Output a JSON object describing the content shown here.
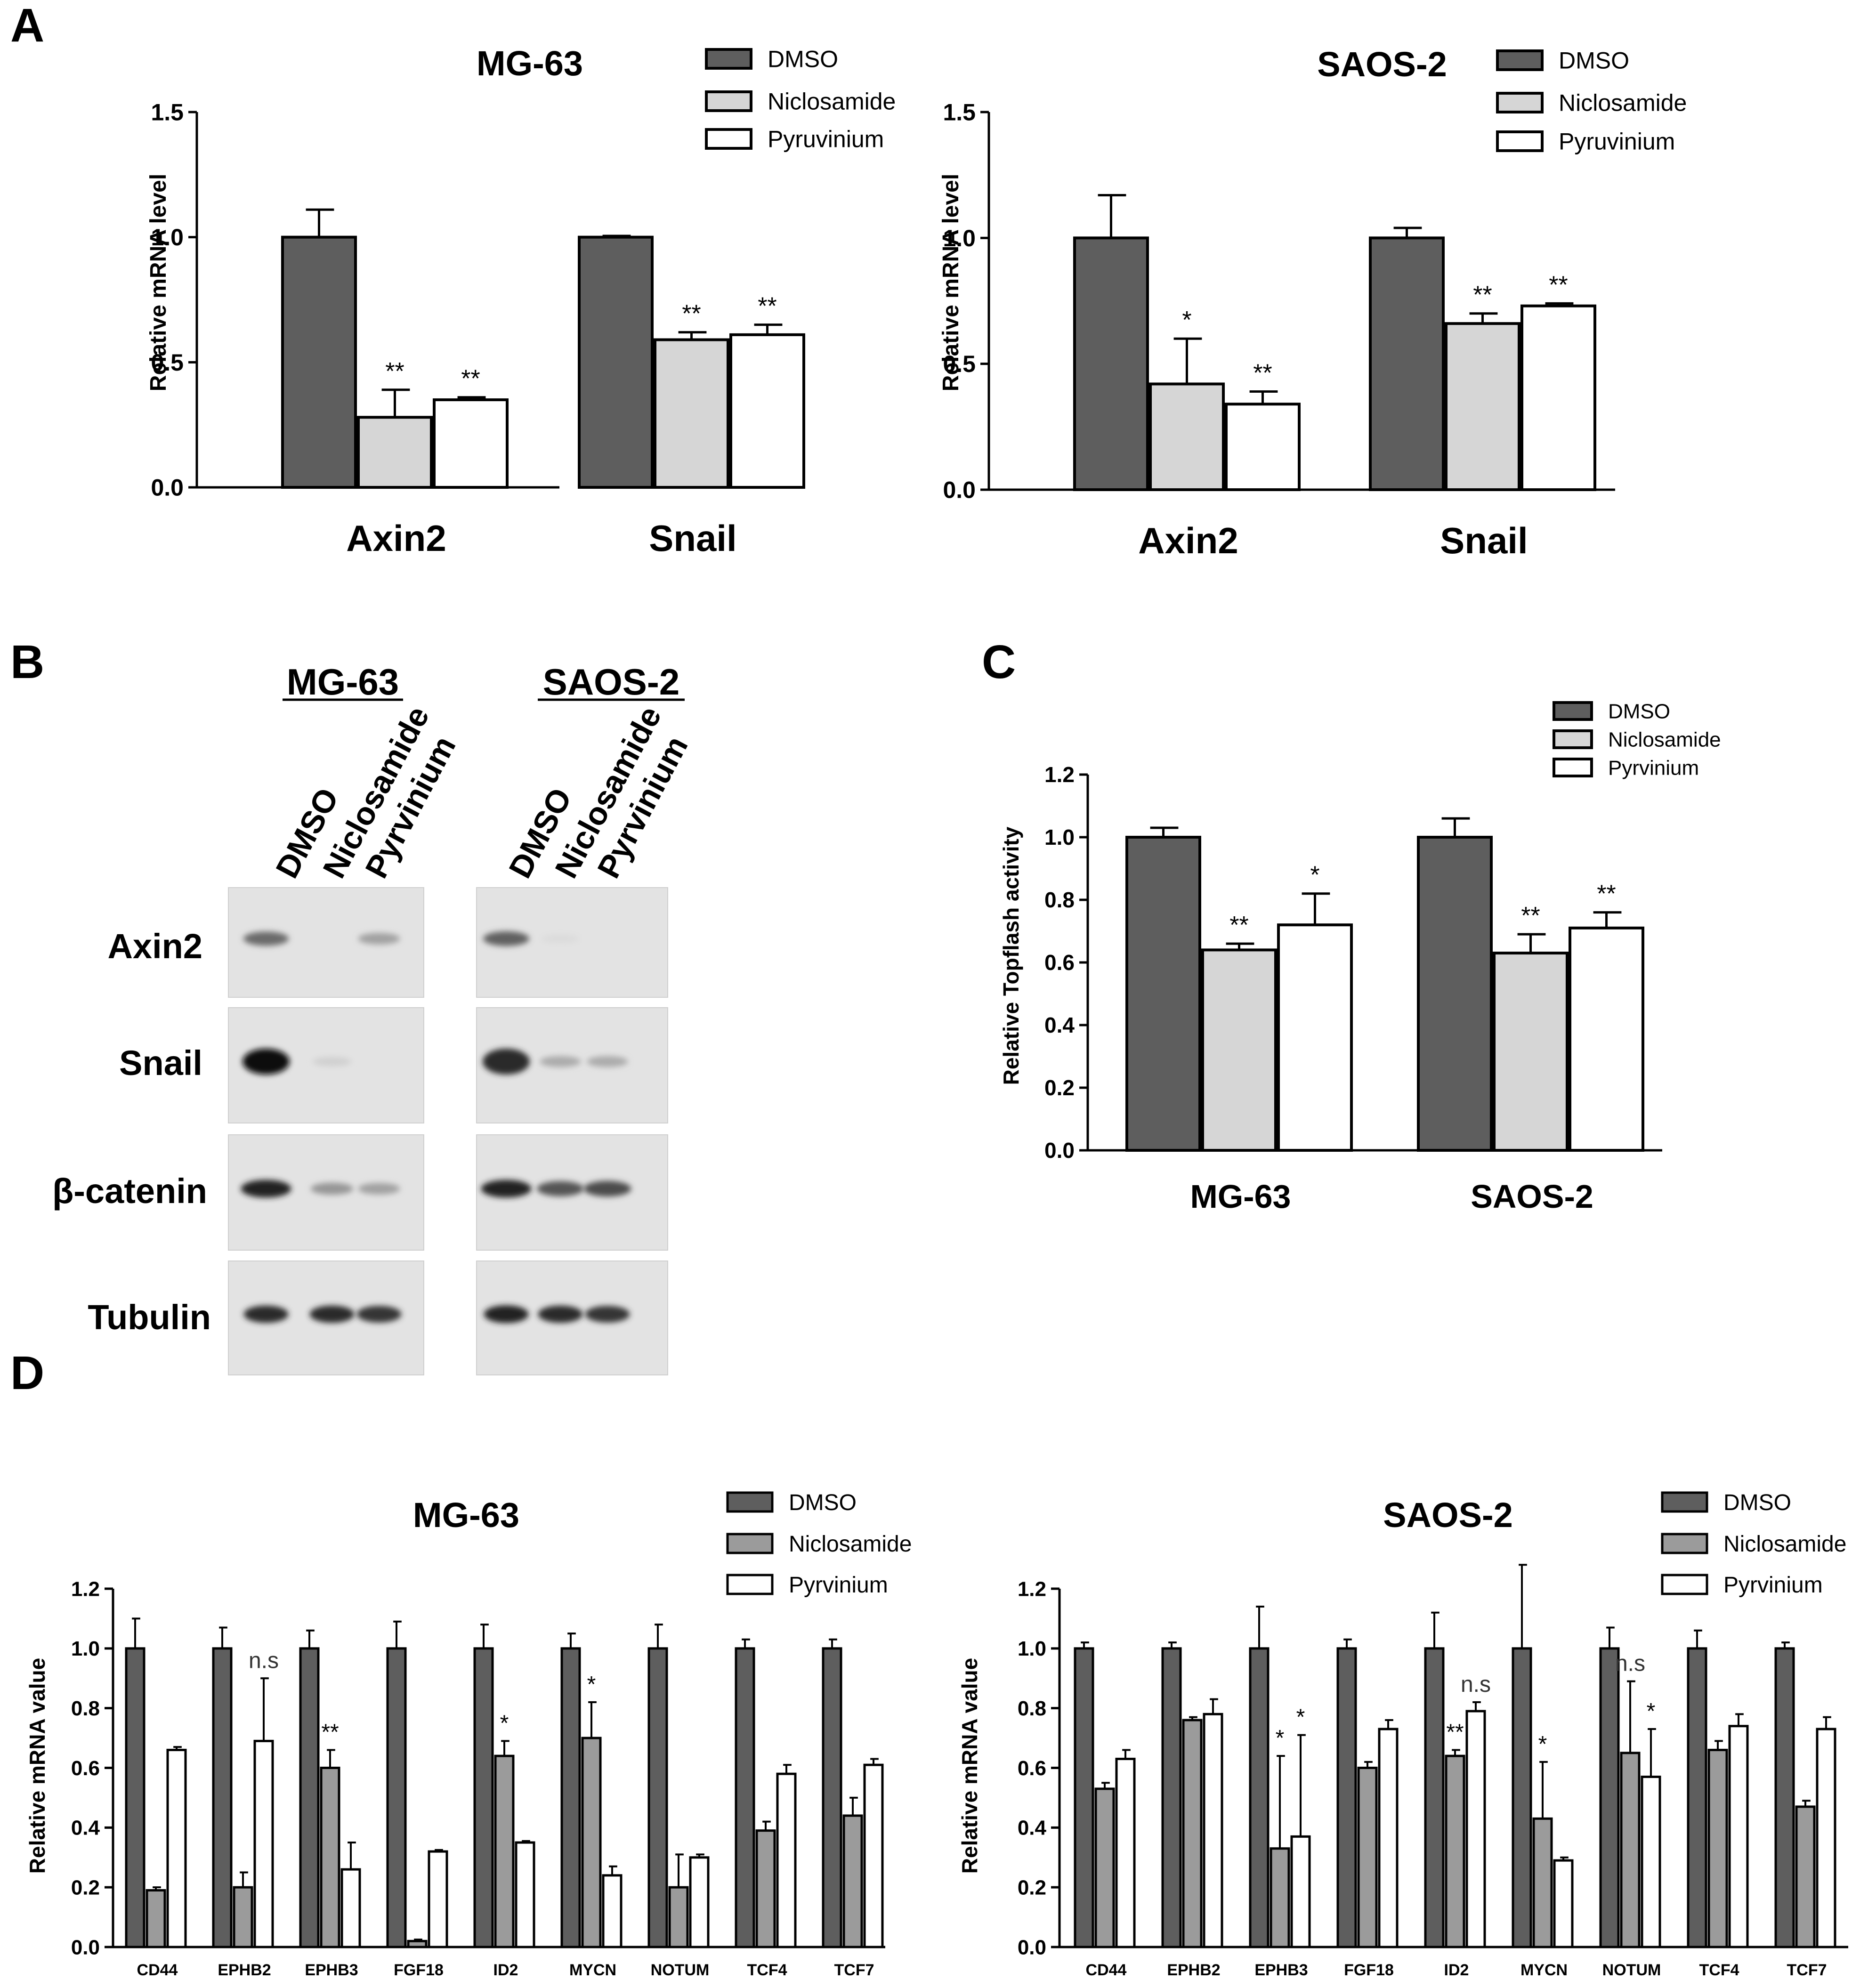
{
  "panel_letters": {
    "a": "A",
    "b": "B",
    "c": "C",
    "d": "D"
  },
  "colors": {
    "dmso": "#5e5e5e",
    "nic_light": "#d6d6d6",
    "nic_mid": "#9b9b9b",
    "pyr": "#ffffff",
    "axis": "#000000"
  },
  "chart_data": [
    {
      "id": "A-MG63",
      "type": "bar",
      "title": "MG-63",
      "xlabel": "",
      "ylabel": "Relative mRNA level",
      "ylim": [
        0,
        1.5
      ],
      "yticks": [
        "0.0",
        "0.5",
        "1.0",
        "1.5"
      ],
      "categories": [
        "Axin2",
        "Snail"
      ],
      "series": [
        {
          "name": "DMSO",
          "values": [
            1.0,
            1.0
          ],
          "errors": [
            0.11,
            0.005
          ]
        },
        {
          "name": "Niclosamide",
          "values": [
            0.28,
            0.59
          ],
          "errors": [
            0.11,
            0.03
          ]
        },
        {
          "name": "Pyruvinium",
          "values": [
            0.35,
            0.61
          ],
          "errors": [
            0.01,
            0.04
          ]
        }
      ],
      "annotations": [
        [
          "",
          ""
        ],
        [
          "**",
          "**"
        ],
        [
          "**",
          "**"
        ]
      ]
    },
    {
      "id": "A-SAOS2",
      "type": "bar",
      "title": "SAOS-2",
      "xlabel": "",
      "ylabel": "Relative mRNA level",
      "ylim": [
        0,
        1.5
      ],
      "yticks": [
        "0.0",
        "0.5",
        "1.0",
        "1.5"
      ],
      "categories": [
        "Axin2",
        "Snail"
      ],
      "series": [
        {
          "name": "DMSO",
          "values": [
            1.0,
            1.0
          ],
          "errors": [
            0.17,
            0.04
          ]
        },
        {
          "name": "Niclosamide",
          "values": [
            0.42,
            0.66
          ],
          "errors": [
            0.18,
            0.04
          ]
        },
        {
          "name": "Pyruvinium",
          "values": [
            0.34,
            0.73
          ],
          "errors": [
            0.05,
            0.01
          ]
        }
      ],
      "annotations": [
        [
          "",
          ""
        ],
        [
          "*",
          "**"
        ],
        [
          "**",
          "**"
        ]
      ]
    },
    {
      "id": "C",
      "type": "bar",
      "title": "",
      "xlabel": "",
      "ylabel": "Relative Topflash activity",
      "ylim": [
        0,
        1.2
      ],
      "yticks": [
        "0.0",
        "0.2",
        "0.4",
        "0.6",
        "0.8",
        "1.0",
        "1.2"
      ],
      "categories": [
        "MG-63",
        "SAOS-2"
      ],
      "series": [
        {
          "name": "DMSO",
          "values": [
            1.0,
            1.0
          ],
          "errors": [
            0.03,
            0.06
          ]
        },
        {
          "name": "Niclosamide",
          "values": [
            0.64,
            0.63
          ],
          "errors": [
            0.02,
            0.06
          ]
        },
        {
          "name": "Pyrvinium",
          "values": [
            0.72,
            0.71
          ],
          "errors": [
            0.1,
            0.05
          ]
        }
      ],
      "annotations": [
        [
          "",
          ""
        ],
        [
          "**",
          "**"
        ],
        [
          "*",
          "**"
        ]
      ]
    },
    {
      "id": "D-MG63",
      "type": "bar",
      "title": "MG-63",
      "xlabel": "",
      "ylabel": "Relative mRNA value",
      "ylim": [
        0,
        1.3
      ],
      "yticks": [
        "0.0",
        "0.2",
        "0.4",
        "0.6",
        "0.8",
        "1.0",
        "1.2"
      ],
      "categories": [
        "CD44",
        "EPHB2",
        "EPHB3",
        "FGF18",
        "ID2",
        "MYCN",
        "NOTUM",
        "TCF4",
        "TCF7"
      ],
      "series": [
        {
          "name": "DMSO",
          "values": [
            1.0,
            1.0,
            1.0,
            1.0,
            1.0,
            1.0,
            1.0,
            1.0,
            1.0
          ],
          "errors": [
            0.1,
            0.07,
            0.06,
            0.09,
            0.08,
            0.05,
            0.08,
            0.03,
            0.03
          ]
        },
        {
          "name": "Niclosamide",
          "values": [
            0.19,
            0.2,
            0.6,
            0.02,
            0.64,
            0.7,
            0.2,
            0.39,
            0.44
          ],
          "errors": [
            0.01,
            0.05,
            0.06,
            0.005,
            0.05,
            0.12,
            0.11,
            0.03,
            0.06
          ]
        },
        {
          "name": "Pyrvinium",
          "values": [
            0.66,
            0.69,
            0.26,
            0.32,
            0.35,
            0.24,
            0.3,
            0.58,
            0.61
          ],
          "errors": [
            0.01,
            0.21,
            0.09,
            0.005,
            0.005,
            0.03,
            0.01,
            0.03,
            0.02
          ]
        }
      ],
      "annotations": [
        [
          "",
          "",
          "",
          "",
          "",
          "",
          "",
          "",
          ""
        ],
        [
          "",
          "",
          "**",
          "",
          "*",
          "*",
          "",
          "",
          ""
        ],
        [
          "",
          "n.s",
          "",
          "",
          "",
          "",
          "",
          "",
          ""
        ]
      ]
    },
    {
      "id": "D-SAOS2",
      "type": "bar",
      "title": "SAOS-2",
      "xlabel": "",
      "ylabel": "Relative mRNA value",
      "ylim": [
        0,
        1.3
      ],
      "yticks": [
        "0.0",
        "0.2",
        "0.4",
        "0.6",
        "0.8",
        "1.0",
        "1.2"
      ],
      "categories": [
        "CD44",
        "EPHB2",
        "EPHB3",
        "FGF18",
        "ID2",
        "MYCN",
        "NOTUM",
        "TCF4",
        "TCF7"
      ],
      "series": [
        {
          "name": "DMSO",
          "values": [
            1.0,
            1.0,
            1.0,
            1.0,
            1.0,
            1.0,
            1.0,
            1.0,
            1.0
          ],
          "errors": [
            0.02,
            0.02,
            0.14,
            0.03,
            0.12,
            0.28,
            0.07,
            0.06,
            0.02
          ]
        },
        {
          "name": "Niclosamide",
          "values": [
            0.53,
            0.76,
            0.33,
            0.6,
            0.64,
            0.43,
            0.65,
            0.66,
            0.47
          ],
          "errors": [
            0.02,
            0.01,
            0.31,
            0.02,
            0.02,
            0.19,
            0.24,
            0.03,
            0.02
          ]
        },
        {
          "name": "Pyrvinium",
          "values": [
            0.63,
            0.78,
            0.37,
            0.73,
            0.79,
            0.29,
            0.57,
            0.74,
            0.73
          ],
          "errors": [
            0.03,
            0.05,
            0.34,
            0.03,
            0.03,
            0.01,
            0.16,
            0.04,
            0.04
          ]
        }
      ],
      "annotations": [
        [
          "",
          "",
          "",
          "",
          "",
          "",
          "",
          "",
          ""
        ],
        [
          "",
          "",
          "*",
          "",
          "**",
          "*",
          "n.s",
          "",
          ""
        ],
        [
          "",
          "",
          "*",
          "",
          "n.s",
          "",
          "*",
          "",
          ""
        ]
      ]
    }
  ],
  "blot": {
    "cell_lines": [
      "MG-63",
      "SAOS-2"
    ],
    "lanes": [
      "DMSO",
      "Niclosamide",
      "Pyrvinium"
    ],
    "rows": [
      "Axin2",
      "Snail",
      "β-catenin",
      "Tubulin"
    ],
    "band_intensity": [
      [
        [
          0.55,
          0.0,
          0.3
        ],
        [
          0.6,
          0.03,
          0.0
        ]
      ],
      [
        [
          1.0,
          0.08,
          0.0
        ],
        [
          0.85,
          0.25,
          0.25
        ]
      ],
      [
        [
          0.9,
          0.35,
          0.3
        ],
        [
          0.9,
          0.65,
          0.7
        ]
      ],
      [
        [
          0.85,
          0.85,
          0.8
        ],
        [
          0.9,
          0.85,
          0.8
        ]
      ]
    ]
  }
}
